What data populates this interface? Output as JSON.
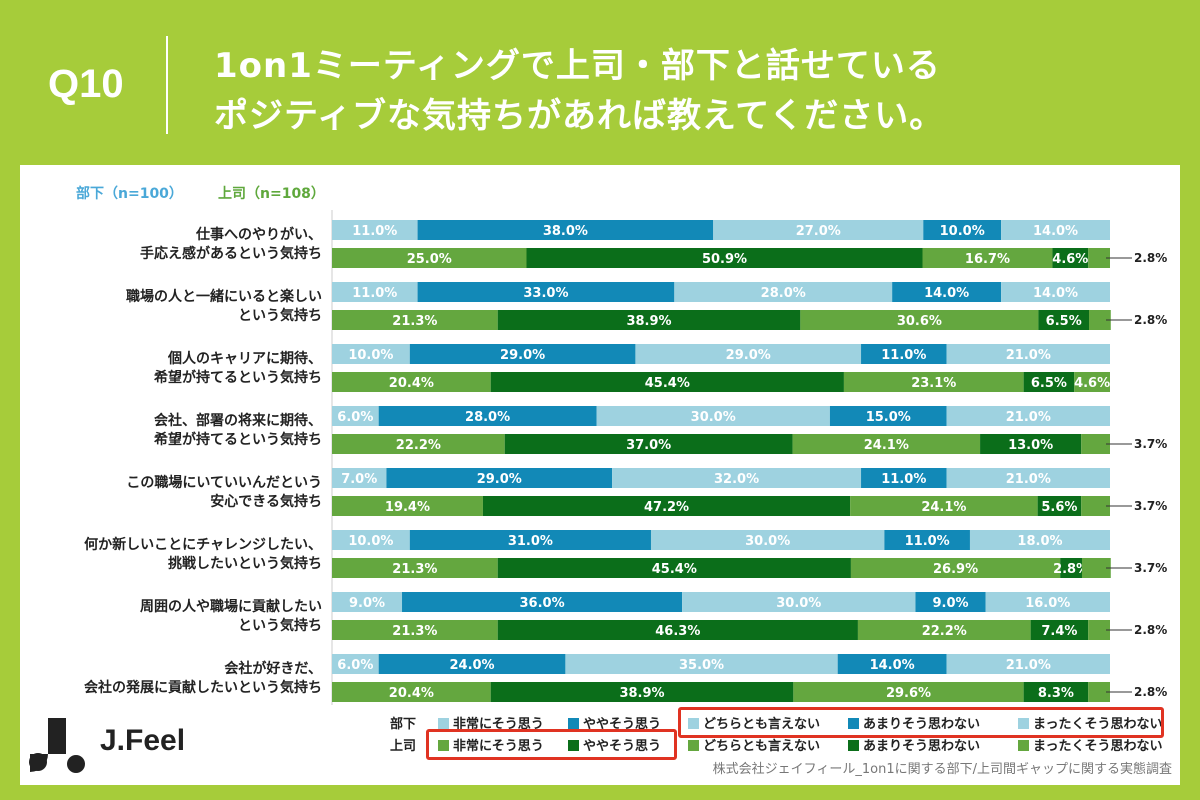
{
  "header": {
    "qnum": "Q10",
    "title_line1": "1on1ミーティングで上司・部下と話せている",
    "title_line2": "ポジティブな気持ちがあれば教えてください。"
  },
  "chart_data": {
    "type": "bar",
    "orientation": "horizontal-stacked-100",
    "series_groups": [
      {
        "name": "部下（n=100）",
        "short": "部下",
        "color": "#4aa8d8"
      },
      {
        "name": "上司（n=108）",
        "short": "上司",
        "color": "#5fa83c"
      }
    ],
    "response_labels": [
      "非常にそう思う",
      "ややそう思う",
      "どちらとも言えない",
      "あまりそう思わない",
      "まったくそう思わない"
    ],
    "colors": {
      "buka": [
        "#9ed2e0",
        "#1289b7",
        "#9ed2e0",
        "#1289b7",
        "#9ed2e0"
      ],
      "joshi": [
        "#64a73f",
        "#0b6e1a",
        "#64a73f",
        "#0b6e1a",
        "#64a73f"
      ]
    },
    "categories": [
      {
        "label": [
          "仕事へのやりがい、",
          "手応え感があるという気持ち"
        ],
        "buka": [
          11.0,
          38.0,
          27.0,
          10.0,
          14.0
        ],
        "joshi": [
          25.0,
          50.9,
          16.7,
          4.6,
          2.8
        ]
      },
      {
        "label": [
          "職場の人と一緒にいると楽しい",
          "という気持ち"
        ],
        "buka": [
          11.0,
          33.0,
          28.0,
          14.0,
          14.0
        ],
        "joshi": [
          21.3,
          38.9,
          30.6,
          6.5,
          2.8
        ]
      },
      {
        "label": [
          "個人のキャリアに期待、",
          "希望が持てるという気持ち"
        ],
        "buka": [
          10.0,
          29.0,
          29.0,
          11.0,
          21.0
        ],
        "joshi": [
          20.4,
          45.4,
          23.1,
          6.5,
          4.6
        ]
      },
      {
        "label": [
          "会社、部署の将来に期待、",
          "希望が持てるという気持ち"
        ],
        "buka": [
          6.0,
          28.0,
          30.0,
          15.0,
          21.0
        ],
        "joshi": [
          22.2,
          37.0,
          24.1,
          13.0,
          3.7
        ]
      },
      {
        "label": [
          "この職場にいていいんだという",
          "安心できる気持ち"
        ],
        "buka": [
          7.0,
          29.0,
          32.0,
          11.0,
          21.0
        ],
        "joshi": [
          19.4,
          47.2,
          24.1,
          5.6,
          3.7
        ]
      },
      {
        "label": [
          "何か新しいことにチャレンジしたい、",
          "挑戦したいという気持ち"
        ],
        "buka": [
          10.0,
          31.0,
          30.0,
          11.0,
          18.0
        ],
        "joshi": [
          21.3,
          45.4,
          26.9,
          2.8,
          3.7
        ]
      },
      {
        "label": [
          "周囲の人や職場に貢献したい",
          "という気持ち"
        ],
        "buka": [
          9.0,
          36.0,
          30.0,
          9.0,
          16.0
        ],
        "joshi": [
          21.3,
          46.3,
          22.2,
          7.4,
          2.8
        ]
      },
      {
        "label": [
          "会社が好きだ、",
          "会社の発展に貢献したいという気持ち"
        ],
        "buka": [
          6.0,
          24.0,
          35.0,
          14.0,
          21.0
        ],
        "joshi": [
          20.4,
          38.9,
          29.6,
          8.3,
          2.8
        ]
      }
    ],
    "xlim": [
      0,
      100
    ],
    "value_format": "{v}%"
  },
  "legend": {
    "buka_label": "部下",
    "joshi_label": "上司"
  },
  "logo_text": "J.Feel",
  "footnote": "株式会社ジェイフィール_1on1に関する部下/上司間ギャップに関する実態調査"
}
